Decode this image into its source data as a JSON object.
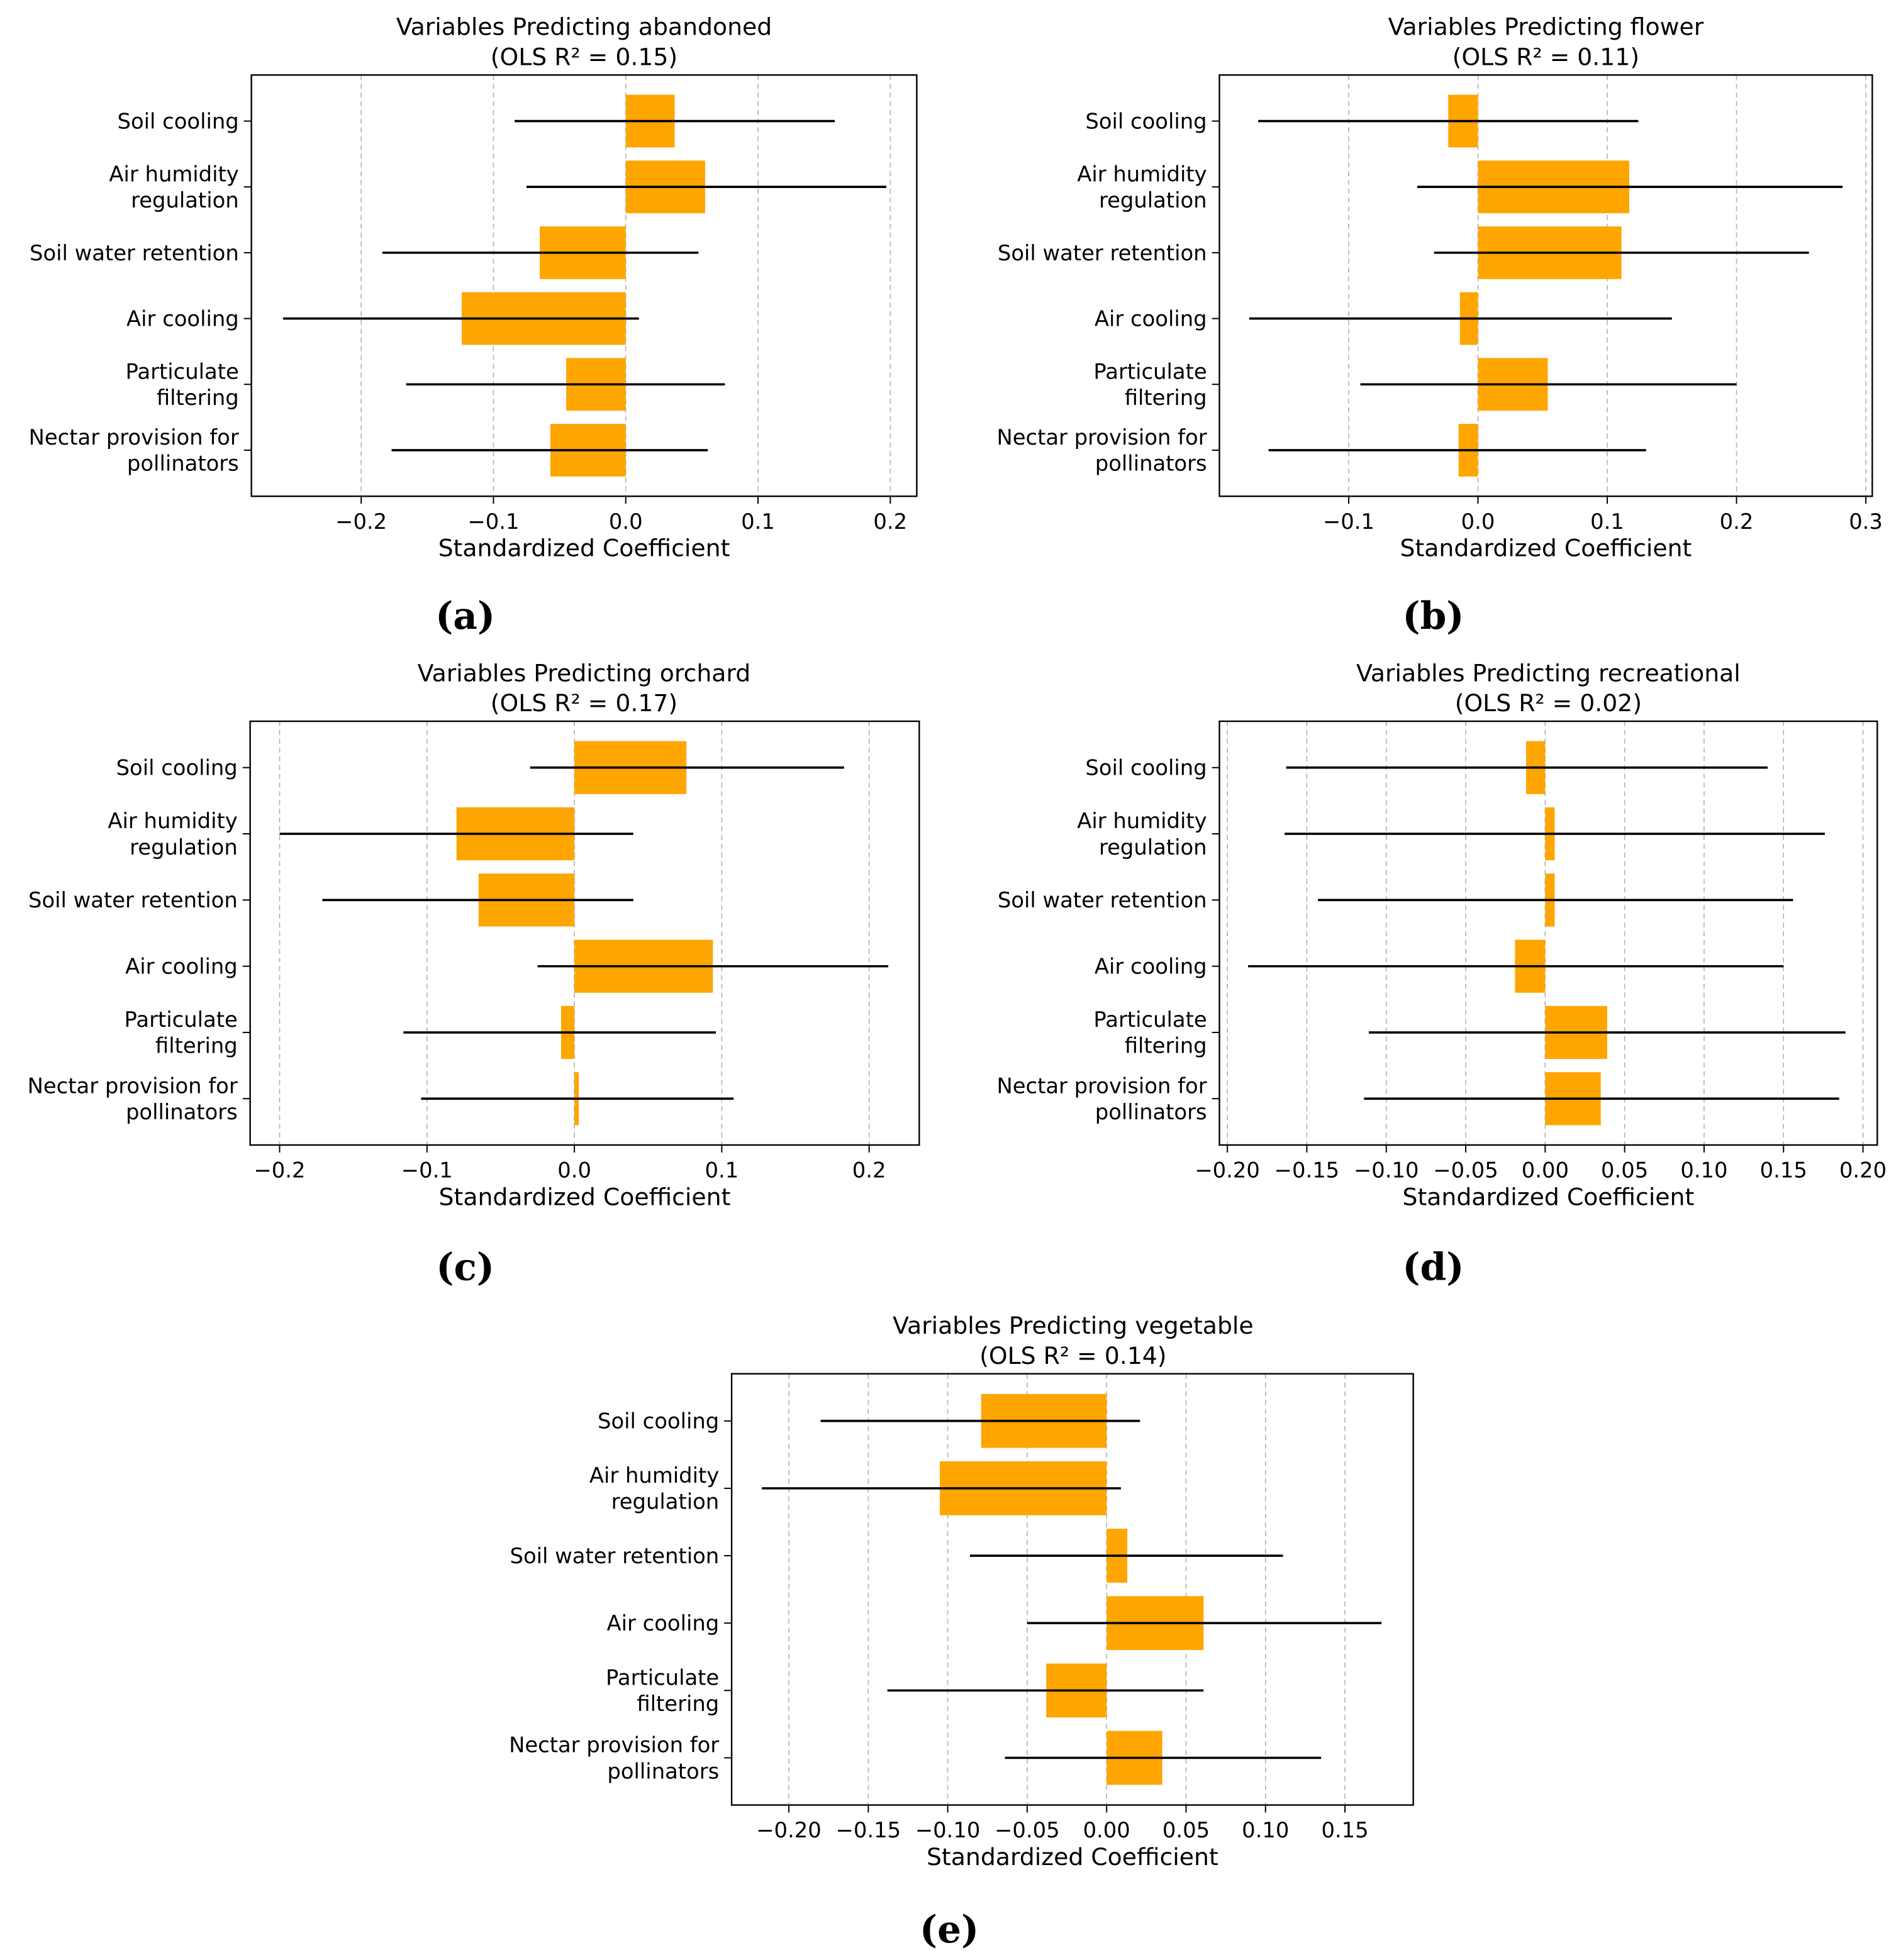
{
  "variables": [
    "Soil cooling",
    "Air humidity\nregulation",
    "Soil water retention",
    "Air cooling",
    "Particulate\nfiltering",
    "Nectar provision for\npollinators"
  ],
  "colors": {
    "bar": "#FFA500",
    "ci": "#000000",
    "grid": "#b0b0b0"
  },
  "chart_data": [
    {
      "type": "bar",
      "orientation": "horizontal",
      "caption": "(a)",
      "title": "Variables Predicting abandoned",
      "subtitle": "(OLS R² = 0.15)",
      "xlabel": "Standardized Coefficient",
      "xlim": [
        -0.283,
        0.22
      ],
      "xticks": [
        -0.2,
        -0.1,
        0.0,
        0.1,
        0.2
      ],
      "xtick_labels": [
        "−0.2",
        "−0.1",
        "0.0",
        "0.1",
        "0.2"
      ],
      "grid": "x-dashed",
      "values": [
        0.037,
        0.06,
        -0.065,
        -0.124,
        -0.045,
        -0.057
      ],
      "ci_low": [
        -0.084,
        -0.075,
        -0.184,
        -0.259,
        -0.166,
        -0.177
      ],
      "ci_high": [
        0.158,
        0.197,
        0.055,
        0.01,
        0.075,
        0.062
      ]
    },
    {
      "type": "bar",
      "orientation": "horizontal",
      "caption": "(b)",
      "title": "Variables Predicting flower",
      "subtitle": "(OLS R² = 0.11)",
      "xlabel": "Standardized Coefficient",
      "xlim": [
        -0.2,
        0.305
      ],
      "xticks": [
        -0.1,
        0.0,
        0.1,
        0.2,
        0.3
      ],
      "xtick_labels": [
        "−0.1",
        "0.0",
        "0.1",
        "0.2",
        "0.3"
      ],
      "grid": "x-dashed",
      "values": [
        -0.023,
        0.117,
        0.111,
        -0.014,
        0.054,
        -0.015
      ],
      "ci_low": [
        -0.17,
        -0.047,
        -0.034,
        -0.177,
        -0.091,
        -0.162
      ],
      "ci_high": [
        0.124,
        0.282,
        0.256,
        0.15,
        0.2,
        0.13
      ]
    },
    {
      "type": "bar",
      "orientation": "horizontal",
      "caption": "(c)",
      "title": "Variables Predicting orchard",
      "subtitle": "(OLS R² = 0.17)",
      "xlabel": "Standardized Coefficient",
      "xlim": [
        -0.22,
        0.234
      ],
      "xticks": [
        -0.2,
        -0.1,
        0.0,
        0.1,
        0.2
      ],
      "xtick_labels": [
        "−0.2",
        "−0.1",
        "0.0",
        "0.1",
        "0.2"
      ],
      "grid": "x-dashed",
      "values": [
        0.076,
        -0.08,
        -0.065,
        0.094,
        -0.009,
        0.003
      ],
      "ci_low": [
        -0.03,
        -0.2,
        -0.171,
        -0.025,
        -0.116,
        -0.104
      ],
      "ci_high": [
        0.183,
        0.04,
        0.04,
        0.213,
        0.096,
        0.108
      ]
    },
    {
      "type": "bar",
      "orientation": "horizontal",
      "caption": "(d)",
      "title": "Variables Predicting recreational",
      "subtitle": "(OLS R² = 0.02)",
      "xlabel": "Standardized Coefficient",
      "xlim": [
        -0.205,
        0.209
      ],
      "xticks": [
        -0.2,
        -0.15,
        -0.1,
        -0.05,
        0.0,
        0.05,
        0.1,
        0.15,
        0.2
      ],
      "xtick_labels": [
        "−0.20",
        "−0.15",
        "−0.10",
        "−0.05",
        "0.00",
        "0.05",
        "0.10",
        "0.15",
        "0.20"
      ],
      "grid": "x-dashed",
      "values": [
        -0.012,
        0.006,
        0.006,
        -0.019,
        0.039,
        0.035
      ],
      "ci_low": [
        -0.163,
        -0.164,
        -0.143,
        -0.187,
        -0.111,
        -0.114
      ],
      "ci_high": [
        0.14,
        0.176,
        0.156,
        0.15,
        0.189,
        0.185
      ]
    },
    {
      "type": "bar",
      "orientation": "horizontal",
      "caption": "(e)",
      "title": "Variables Predicting vegetable",
      "subtitle": "(OLS R² = 0.14)",
      "xlabel": "Standardized Coefficient",
      "xlim": [
        -0.236,
        0.193
      ],
      "xticks": [
        -0.2,
        -0.15,
        -0.1,
        -0.05,
        0.0,
        0.05,
        0.1,
        0.15
      ],
      "xtick_labels": [
        "−0.20",
        "−0.15",
        "−0.10",
        "−0.05",
        "0.00",
        "0.05",
        "0.10",
        "0.15"
      ],
      "grid": "x-dashed",
      "values": [
        -0.079,
        -0.105,
        0.013,
        0.061,
        -0.038,
        0.035
      ],
      "ci_low": [
        -0.18,
        -0.217,
        -0.086,
        -0.05,
        -0.138,
        -0.064
      ],
      "ci_high": [
        0.021,
        0.009,
        0.111,
        0.173,
        0.061,
        0.135
      ]
    }
  ]
}
